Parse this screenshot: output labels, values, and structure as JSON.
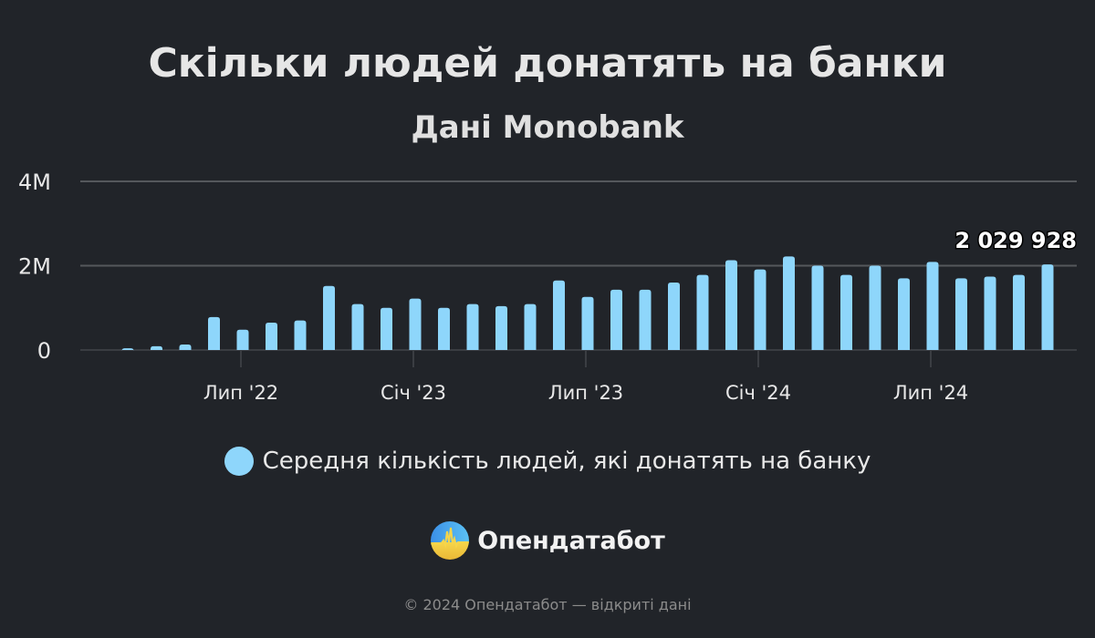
{
  "chart_data": {
    "type": "bar",
    "title": "Скільки людей донатять на банки",
    "subtitle": "Дані Monobank",
    "xlabel": "",
    "ylabel": "",
    "ylim": [
      0,
      4000000
    ],
    "y_ticks": [
      {
        "value": 0,
        "label": "0"
      },
      {
        "value": 2000000,
        "label": "2M"
      },
      {
        "value": 4000000,
        "label": "4M"
      }
    ],
    "x_ticks": [
      {
        "x": "2022-07",
        "label": "Лип '22"
      },
      {
        "x": "2023-01",
        "label": "Січ '23"
      },
      {
        "x": "2023-07",
        "label": "Лип '23"
      },
      {
        "x": "2024-01",
        "label": "Січ '24"
      },
      {
        "x": "2024-07",
        "label": "Лип '24"
      }
    ],
    "grid": true,
    "legend_position": "bottom",
    "color": "#8ed6fb",
    "categories": [
      "2022-03",
      "2022-04",
      "2022-05",
      "2022-06",
      "2022-07",
      "2022-08",
      "2022-09",
      "2022-10",
      "2022-11",
      "2022-12",
      "2023-01",
      "2023-02",
      "2023-03",
      "2023-04",
      "2023-05",
      "2023-06",
      "2023-07",
      "2023-08",
      "2023-09",
      "2023-10",
      "2023-11",
      "2023-12",
      "2024-01",
      "2024-02",
      "2024-03",
      "2024-04",
      "2024-05",
      "2024-06",
      "2024-07",
      "2024-08",
      "2024-09",
      "2024-10",
      "2024-11"
    ],
    "series": [
      {
        "name": "Середня кількість людей, які донатять на банку",
        "values": [
          40000,
          90000,
          130000,
          780000,
          480000,
          650000,
          700000,
          1520000,
          1090000,
          1000000,
          1220000,
          1000000,
          1090000,
          1040000,
          1090000,
          1650000,
          1260000,
          1430000,
          1430000,
          1600000,
          1780000,
          2130000,
          1910000,
          2220000,
          2000000,
          1780000,
          2000000,
          1700000,
          2090000,
          1700000,
          1740000,
          1780000,
          2029928
        ]
      }
    ],
    "annotations": [
      {
        "x": "2024-11",
        "label": "2 029 928"
      }
    ]
  },
  "brand": {
    "name": "Опендатабот"
  },
  "footer": {
    "text": "© 2024 Опендатабот — відкриті дані"
  }
}
